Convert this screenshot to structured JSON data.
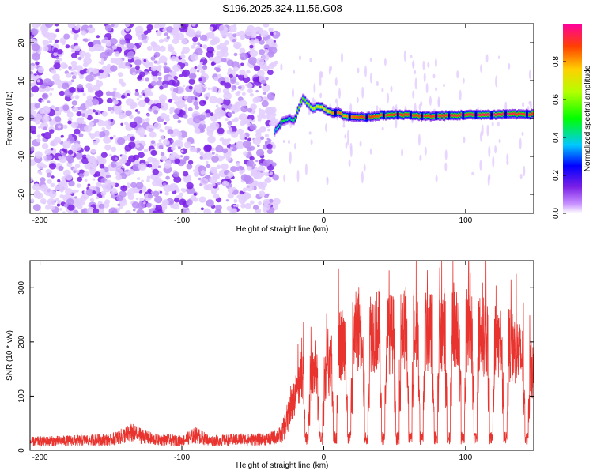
{
  "title": "S196.2025.324.11.56.G08",
  "chart_data": [
    {
      "type": "heatmap",
      "title": "S196.2025.324.11.56.G08",
      "xlabel": "Height of straight line (km)",
      "ylabel": "Frequency (Hz)",
      "xlim": [
        -207,
        148
      ],
      "ylim": [
        -25,
        25
      ],
      "xticks": [
        -200,
        -100,
        0,
        100
      ],
      "yticks": [
        -20,
        -10,
        0,
        10,
        20
      ],
      "grid": false,
      "noise_region_x": [
        -207,
        -33
      ],
      "ridge": {
        "x": [
          -35,
          -30,
          -25,
          -21,
          -18,
          -15,
          -12,
          -8,
          -5,
          -2,
          0,
          5,
          10,
          15,
          20,
          30,
          40,
          50,
          60,
          70,
          80,
          90,
          100,
          110,
          120,
          130,
          140,
          148
        ],
        "frequency_hz": [
          -3.5,
          -1,
          0,
          -0.5,
          3,
          5.5,
          4,
          2.5,
          3,
          3,
          2.5,
          1.5,
          1.5,
          0.5,
          0.5,
          0.3,
          0.8,
          1,
          1,
          0.6,
          0.7,
          0.8,
          1,
          1,
          1,
          1.2,
          1.1,
          1.2
        ],
        "peak_amplitude": [
          0.35,
          0.5,
          0.4,
          0.45,
          0.6,
          0.55,
          0.6,
          0.65,
          0.7,
          0.75,
          0.7,
          0.8,
          0.85,
          0.8,
          0.85,
          0.9,
          0.85,
          0.9,
          0.9,
          0.88,
          0.9,
          0.92,
          0.92,
          0.95,
          0.95,
          0.93,
          0.9,
          0.9
        ]
      }
    },
    {
      "type": "colorbar",
      "label": "Normalized spectral amplitude",
      "range": [
        0,
        1
      ],
      "ticks": [
        "0.0",
        "0.2",
        "0.4",
        "0.6",
        "0.8"
      ],
      "tick_values": [
        0,
        0.2,
        0.4,
        0.6,
        0.8
      ]
    },
    {
      "type": "line",
      "xlabel": "Height of straight line (km)",
      "ylabel": "SNR (10 * v/v)",
      "xlim": [
        -207,
        148
      ],
      "ylim": [
        0,
        350
      ],
      "xticks": [
        -200,
        -100,
        0,
        100
      ],
      "yticks": [
        0,
        100,
        200,
        300
      ],
      "grid": false,
      "series": [
        {
          "name": "SNR",
          "color": "#e8332e",
          "x": [
            -207,
            -180,
            -150,
            -135,
            -120,
            -100,
            -90,
            -80,
            -60,
            -40,
            -30,
            -20,
            -15,
            -10,
            -5,
            0,
            5,
            10,
            20,
            25,
            30,
            40,
            50,
            60,
            70,
            80,
            90,
            100,
            110,
            120,
            130,
            135,
            140,
            148
          ],
          "y": [
            20,
            22,
            25,
            40,
            25,
            22,
            35,
            22,
            25,
            25,
            35,
            120,
            170,
            150,
            180,
            160,
            190,
            230,
            240,
            270,
            260,
            260,
            250,
            270,
            260,
            250,
            280,
            260,
            250,
            240,
            230,
            220,
            200,
            170
          ]
        }
      ],
      "dips_x": [
        -12,
        -2,
        8,
        18,
        30,
        42,
        52,
        61,
        69,
        79,
        88,
        98,
        107,
        118,
        128,
        143
      ]
    }
  ]
}
